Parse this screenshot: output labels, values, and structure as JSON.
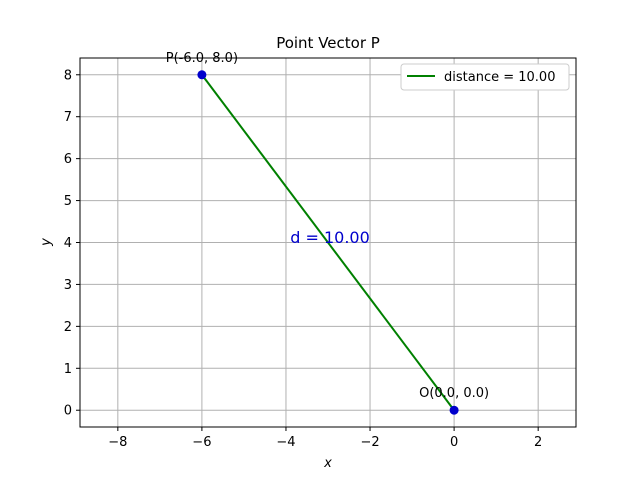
{
  "chart_data": {
    "type": "line",
    "title": "Point Vector P",
    "xlabel": "x",
    "ylabel": "y",
    "xlim": [
      -8.9,
      2.9
    ],
    "ylim": [
      -0.4,
      8.4
    ],
    "xticks": [
      -8,
      -6,
      -4,
      -2,
      0,
      2
    ],
    "xtick_labels": [
      "−8",
      "−6",
      "−4",
      "−2",
      "0",
      "2"
    ],
    "yticks": [
      0,
      1,
      2,
      3,
      4,
      5,
      6,
      7,
      8
    ],
    "ytick_labels": [
      "0",
      "1",
      "2",
      "3",
      "4",
      "5",
      "6",
      "7",
      "8"
    ],
    "grid": true,
    "legend_position": "top-right",
    "series": [
      {
        "name": "distance = 10.00",
        "color": "#008000",
        "points": [
          [
            0,
            0
          ],
          [
            -6,
            8
          ]
        ]
      }
    ],
    "points": [
      {
        "x": -6,
        "y": 8,
        "label": "P(-6.0, 8.0)",
        "color": "#0000cc"
      },
      {
        "x": 0,
        "y": 0,
        "label": "O(0.0, 0.0)",
        "color": "#0000cc"
      }
    ],
    "annotations": [
      {
        "text": "d = 10.00",
        "x": -3,
        "y": 4,
        "color": "#0000cc"
      }
    ]
  }
}
